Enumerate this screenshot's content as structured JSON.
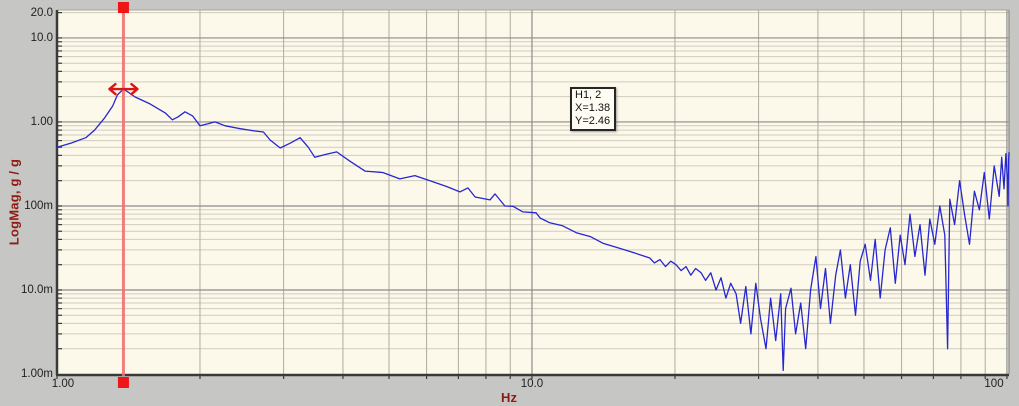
{
  "chart": {
    "y_axis_title": "LogMag, g / g",
    "x_axis_title": "Hz",
    "tooltip": {
      "line1": "H1, 2",
      "line2": "X=1.38",
      "line3": "Y=2.46"
    },
    "cursor": {
      "x_hz": 1.38,
      "y_value": 2.46
    },
    "colors": {
      "outer_bg": "#c6c6c4",
      "plot_bg": "#fdf9ea",
      "frame": "#3a3a3a",
      "grid_major": "#8c8c8c",
      "grid_minor_h": "#cfccbf",
      "grid_minor_v": "#aeaba1",
      "trace": "#2727cf",
      "cursor_line": "#f17070",
      "cursor_marker": "#ee1616",
      "arrow": "#dd1414",
      "axis_title_text": "#8e1a12",
      "tick_text": "#1f1f1f"
    }
  },
  "chart_data": {
    "type": "line",
    "x_scale": "log",
    "y_scale": "log",
    "xlabel": "Hz",
    "ylabel": "LogMag, g / g",
    "xlim": [
      1.0,
      101.0
    ],
    "ylim": [
      0.001,
      21.5
    ],
    "grid": true,
    "x_ticks": [
      {
        "value": 1.0,
        "label": "1.00"
      },
      {
        "value": 10.0,
        "label": "10.0"
      },
      {
        "value": 100.0,
        "label": "100"
      }
    ],
    "y_ticks": [
      {
        "value": 20.0,
        "label": "20.0"
      },
      {
        "value": 10.0,
        "label": "10.0"
      },
      {
        "value": 1.0,
        "label": "1.00"
      },
      {
        "value": 0.1,
        "label": "100m"
      },
      {
        "value": 0.01,
        "label": "10.0m"
      },
      {
        "value": 0.001,
        "label": "1.00m"
      }
    ],
    "x_minor": [
      2,
      3,
      4,
      5,
      6,
      7,
      8,
      9,
      20,
      30,
      40,
      50,
      60,
      70,
      80,
      90
    ],
    "x_major": [
      10,
      100
    ],
    "y_minor": [
      0.002,
      0.003,
      0.004,
      0.005,
      0.006,
      0.007,
      0.008,
      0.009,
      0.02,
      0.03,
      0.04,
      0.05,
      0.06,
      0.07,
      0.08,
      0.09,
      0.2,
      0.3,
      0.4,
      0.5,
      0.6,
      0.7,
      0.8,
      0.9,
      2,
      3,
      4,
      5,
      6,
      7,
      8,
      9,
      20
    ],
    "y_major": [
      0.01,
      0.1,
      1,
      10
    ],
    "cursor": {
      "x": 1.38,
      "y": 2.46
    },
    "series": [
      {
        "name": "H1, 2",
        "points": [
          [
            1.0,
            0.5
          ],
          [
            1.07,
            0.56
          ],
          [
            1.15,
            0.65
          ],
          [
            1.2,
            0.8
          ],
          [
            1.26,
            1.12
          ],
          [
            1.31,
            1.55
          ],
          [
            1.34,
            2.1
          ],
          [
            1.38,
            2.46
          ],
          [
            1.41,
            2.28
          ],
          [
            1.46,
            1.98
          ],
          [
            1.57,
            1.64
          ],
          [
            1.69,
            1.28
          ],
          [
            1.75,
            1.06
          ],
          [
            1.8,
            1.15
          ],
          [
            1.86,
            1.32
          ],
          [
            1.93,
            1.18
          ],
          [
            2.0,
            0.9
          ],
          [
            2.08,
            0.95
          ],
          [
            2.15,
            1.0
          ],
          [
            2.26,
            0.9
          ],
          [
            2.43,
            0.83
          ],
          [
            2.61,
            0.78
          ],
          [
            2.72,
            0.76
          ],
          [
            2.81,
            0.61
          ],
          [
            2.95,
            0.49
          ],
          [
            3.1,
            0.56
          ],
          [
            3.25,
            0.65
          ],
          [
            3.38,
            0.5
          ],
          [
            3.49,
            0.38
          ],
          [
            3.67,
            0.41
          ],
          [
            3.88,
            0.44
          ],
          [
            4.14,
            0.34
          ],
          [
            4.45,
            0.26
          ],
          [
            4.85,
            0.25
          ],
          [
            5.27,
            0.21
          ],
          [
            5.67,
            0.23
          ],
          [
            6.1,
            0.2
          ],
          [
            6.62,
            0.17
          ],
          [
            7.05,
            0.147
          ],
          [
            7.33,
            0.164
          ],
          [
            7.59,
            0.128
          ],
          [
            8.16,
            0.118
          ],
          [
            8.36,
            0.139
          ],
          [
            8.77,
            0.1
          ],
          [
            9.12,
            0.099
          ],
          [
            9.57,
            0.085
          ],
          [
            10.2,
            0.083
          ],
          [
            10.4,
            0.072
          ],
          [
            10.9,
            0.063
          ],
          [
            11.6,
            0.058
          ],
          [
            12.4,
            0.048
          ],
          [
            13.3,
            0.043
          ],
          [
            14.1,
            0.036
          ],
          [
            15.1,
            0.032
          ],
          [
            16.3,
            0.028
          ],
          [
            17.7,
            0.024
          ],
          [
            18.1,
            0.021
          ],
          [
            18.6,
            0.023
          ],
          [
            19.1,
            0.019
          ],
          [
            19.6,
            0.022
          ],
          [
            20.1,
            0.02
          ],
          [
            20.6,
            0.017
          ],
          [
            21.1,
            0.019
          ],
          [
            21.6,
            0.015
          ],
          [
            22.1,
            0.018
          ],
          [
            22.7,
            0.016
          ],
          [
            23.2,
            0.013
          ],
          [
            23.8,
            0.016
          ],
          [
            24.4,
            0.01
          ],
          [
            25.0,
            0.014
          ],
          [
            25.6,
            0.008
          ],
          [
            26.2,
            0.012
          ],
          [
            26.9,
            0.009
          ],
          [
            27.5,
            0.004
          ],
          [
            28.2,
            0.011
          ],
          [
            28.9,
            0.003
          ],
          [
            29.6,
            0.012
          ],
          [
            30.3,
            0.0045
          ],
          [
            31.1,
            0.002
          ],
          [
            31.8,
            0.008
          ],
          [
            32.6,
            0.0025
          ],
          [
            33.4,
            0.009
          ],
          [
            33.8,
            0.0011
          ],
          [
            34.2,
            0.006
          ],
          [
            35.1,
            0.0105
          ],
          [
            35.9,
            0.003
          ],
          [
            36.8,
            0.007
          ],
          [
            37.7,
            0.002
          ],
          [
            38.6,
            0.01
          ],
          [
            39.6,
            0.025
          ],
          [
            40.5,
            0.006
          ],
          [
            41.5,
            0.018
          ],
          [
            42.5,
            0.004
          ],
          [
            43.6,
            0.015
          ],
          [
            44.6,
            0.03
          ],
          [
            45.7,
            0.008
          ],
          [
            46.8,
            0.02
          ],
          [
            48.0,
            0.005
          ],
          [
            49.1,
            0.022
          ],
          [
            50.3,
            0.035
          ],
          [
            51.6,
            0.013
          ],
          [
            52.8,
            0.04
          ],
          [
            54.1,
            0.008
          ],
          [
            55.4,
            0.03
          ],
          [
            56.8,
            0.055
          ],
          [
            58.2,
            0.012
          ],
          [
            59.6,
            0.045
          ],
          [
            61.0,
            0.02
          ],
          [
            62.5,
            0.08
          ],
          [
            64.0,
            0.025
          ],
          [
            65.6,
            0.06
          ],
          [
            67.2,
            0.015
          ],
          [
            68.8,
            0.07
          ],
          [
            70.5,
            0.035
          ],
          [
            72.2,
            0.1
          ],
          [
            74.0,
            0.045
          ],
          [
            75.0,
            0.002
          ],
          [
            75.8,
            0.12
          ],
          [
            77.6,
            0.06
          ],
          [
            79.5,
            0.2
          ],
          [
            81.4,
            0.08
          ],
          [
            83.4,
            0.035
          ],
          [
            85.4,
            0.15
          ],
          [
            87.5,
            0.09
          ],
          [
            89.6,
            0.25
          ],
          [
            91.8,
            0.07
          ],
          [
            94.0,
            0.3
          ],
          [
            96.3,
            0.13
          ],
          [
            97.5,
            0.38
          ],
          [
            98.6,
            0.16
          ],
          [
            99.5,
            0.42
          ],
          [
            100.2,
            0.2
          ],
          [
            100.5,
            0.1
          ],
          [
            100.8,
            0.35
          ],
          [
            101.0,
            0.43
          ]
        ]
      }
    ]
  }
}
